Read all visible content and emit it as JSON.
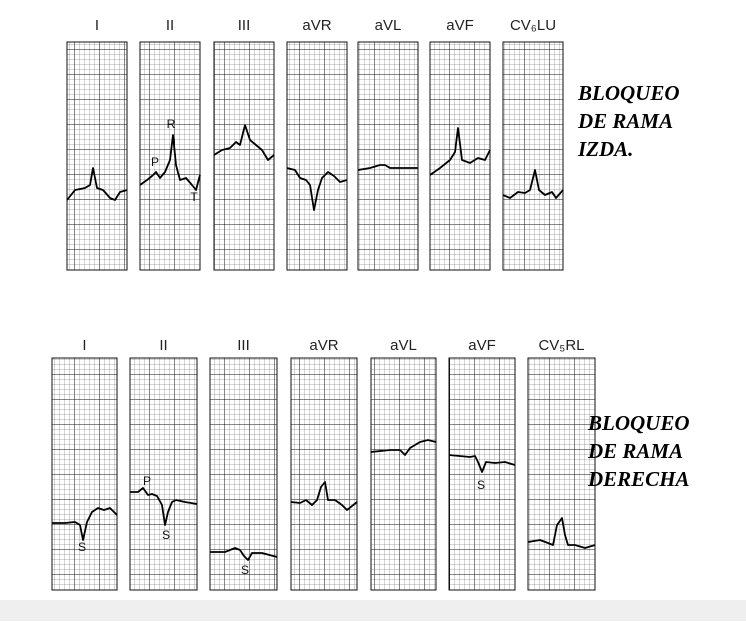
{
  "top": {
    "title": [
      "BLOQUEO",
      "DE RAMA",
      "IZDA."
    ],
    "leads": [
      {
        "label": "I"
      },
      {
        "label": "II",
        "waves": [
          "R",
          "P",
          "T"
        ]
      },
      {
        "label": "III"
      },
      {
        "label": "aVR"
      },
      {
        "label": "aVL"
      },
      {
        "label": "aVF"
      },
      {
        "label": "CV₆LU"
      }
    ]
  },
  "bottom": {
    "title": [
      "BLOQUEO",
      "DE RAMA",
      "DERECHA"
    ],
    "leads": [
      {
        "label": "I",
        "waves": [
          "S"
        ]
      },
      {
        "label": "II",
        "waves": [
          "P",
          "S"
        ]
      },
      {
        "label": "III",
        "waves": [
          "S"
        ]
      },
      {
        "label": "aVR"
      },
      {
        "label": "aVL"
      },
      {
        "label": "aVF",
        "waves": [
          "S"
        ]
      },
      {
        "label": "CV₅RL"
      }
    ]
  }
}
